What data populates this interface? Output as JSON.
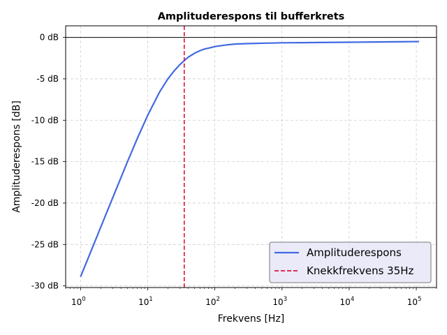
{
  "chart_data": {
    "type": "line",
    "title": "Amplituderespons til bufferkrets",
    "xlabel": "Frekvens [Hz]",
    "ylabel": "Amplituderespons [dB]",
    "x_scale": "log",
    "xlim": [
      0.6,
      200000
    ],
    "ylim": [
      -30.2,
      1.4
    ],
    "x_ticks": [
      {
        "base": "10",
        "exp": "0",
        "value": 1
      },
      {
        "base": "10",
        "exp": "1",
        "value": 10
      },
      {
        "base": "10",
        "exp": "2",
        "value": 100
      },
      {
        "base": "10",
        "exp": "3",
        "value": 1000
      },
      {
        "base": "10",
        "exp": "4",
        "value": 10000
      },
      {
        "base": "10",
        "exp": "5",
        "value": 100000
      }
    ],
    "y_ticks": [
      {
        "label": "0 dB",
        "value": 0
      },
      {
        "label": "-5 dB",
        "value": -5
      },
      {
        "label": "-10 dB",
        "value": -10
      },
      {
        "label": "-15 dB",
        "value": -15
      },
      {
        "label": "-20 dB",
        "value": -20
      },
      {
        "label": "-25 dB",
        "value": -25
      },
      {
        "label": "-30 dB",
        "value": -30
      }
    ],
    "grid": true,
    "legend_position": "lower-right",
    "reference_line_y": 0,
    "series": [
      {
        "name": "Amplituderespons",
        "color": "#4169e1",
        "style": "solid",
        "x": [
          1,
          1.5,
          2,
          3,
          5,
          7,
          10,
          15,
          20,
          25,
          30,
          35,
          40,
          50,
          60,
          70,
          80,
          100,
          150,
          200,
          300,
          500,
          700,
          1000,
          2000,
          5000,
          10000,
          20000,
          50000,
          110000
        ],
        "y": [
          -28.9,
          -25.4,
          -22.9,
          -19.4,
          -15.0,
          -12.2,
          -9.4,
          -6.6,
          -5.0,
          -4.0,
          -3.3,
          -2.8,
          -2.4,
          -1.9,
          -1.6,
          -1.4,
          -1.3,
          -1.1,
          -0.9,
          -0.8,
          -0.75,
          -0.7,
          -0.68,
          -0.65,
          -0.63,
          -0.6,
          -0.58,
          -0.56,
          -0.53,
          -0.5
        ]
      },
      {
        "name": "Knekkfrekvens 35Hz",
        "color": "#dc143c",
        "style": "dashed",
        "vertical_x": 35
      }
    ]
  }
}
